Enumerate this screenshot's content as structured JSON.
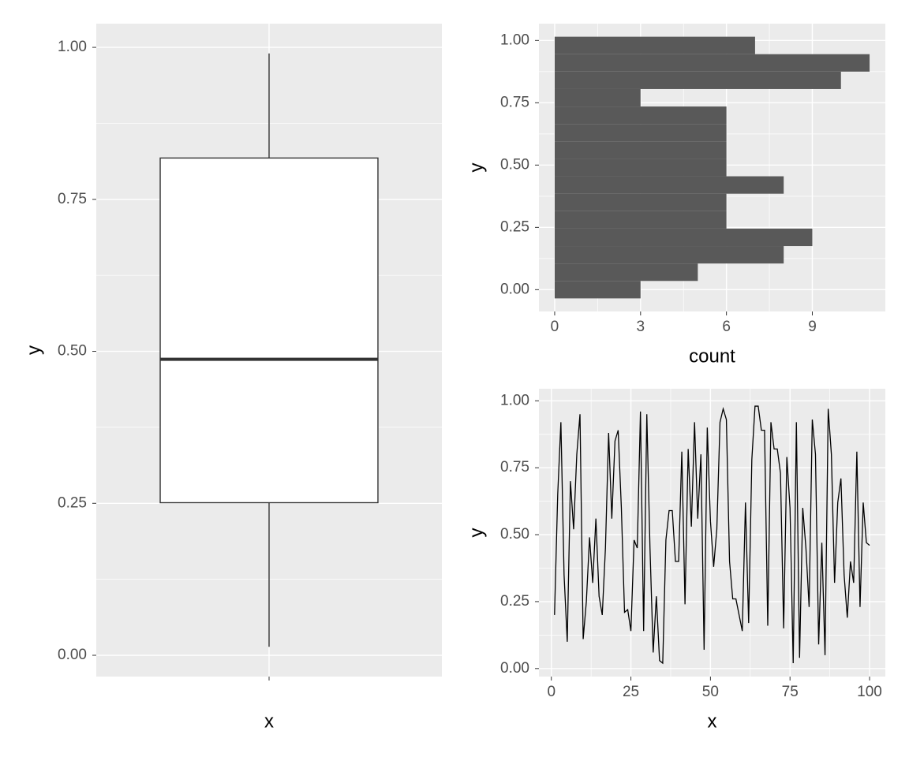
{
  "chart_data": [
    {
      "type": "box",
      "xlabel": "x",
      "ylabel": "y",
      "categories": [
        null
      ],
      "boxes": [
        {
          "min": 0.014,
          "q1": 0.251,
          "median": 0.487,
          "q3": 0.818,
          "max": 0.99
        }
      ],
      "fill": "#ffffff",
      "color": "#333333",
      "ylim": [
        -0.035,
        1.039
      ],
      "yticks": [
        {
          "value": 0,
          "label": "0.00"
        },
        {
          "value": 0.25,
          "label": "0.25"
        },
        {
          "value": 0.5,
          "label": "0.50"
        },
        {
          "value": 0.75,
          "label": "0.75"
        },
        {
          "value": 1,
          "label": "1.00"
        }
      ],
      "grid": true
    },
    {
      "type": "histogram",
      "orientation": "horizontal",
      "xlabel": "count",
      "ylabel": "y",
      "bins": [
        -0.035,
        0.035,
        0.105,
        0.175,
        0.245,
        0.315,
        0.385,
        0.455,
        0.525,
        0.595,
        0.665,
        0.735,
        0.805,
        0.875,
        0.945,
        1.015
      ],
      "values": [
        3,
        5,
        8,
        9,
        6,
        6,
        8,
        6,
        6,
        6,
        6,
        3,
        10,
        11,
        7
      ],
      "color": "#595959",
      "xlim": [
        -0.55,
        11.55
      ],
      "xticks": [
        0,
        3,
        6,
        9
      ],
      "ylim": [
        -0.0875,
        1.0675
      ],
      "yticks": [
        {
          "value": 0,
          "label": "0.00"
        },
        {
          "value": 0.25,
          "label": "0.25"
        },
        {
          "value": 0.5,
          "label": "0.50"
        },
        {
          "value": 0.75,
          "label": "0.75"
        },
        {
          "value": 1,
          "label": "1.00"
        }
      ],
      "grid": true
    },
    {
      "type": "line",
      "xlabel": "x",
      "ylabel": "y",
      "color": "#000000",
      "x": [
        1,
        2,
        3,
        4,
        5,
        6,
        7,
        8,
        9,
        10,
        11,
        12,
        13,
        14,
        15,
        16,
        17,
        18,
        19,
        20,
        21,
        22,
        23,
        24,
        25,
        26,
        27,
        28,
        29,
        30,
        31,
        32,
        33,
        34,
        35,
        36,
        37,
        38,
        39,
        40,
        41,
        42,
        43,
        44,
        45,
        46,
        47,
        48,
        49,
        50,
        51,
        52,
        53,
        54,
        55,
        56,
        57,
        58,
        59,
        60,
        61,
        62,
        63,
        64,
        65,
        66,
        67,
        68,
        69,
        70,
        71,
        72,
        73,
        74,
        75,
        76,
        77,
        78,
        79,
        80,
        81,
        82,
        83,
        84,
        85,
        86,
        87,
        88,
        89,
        90,
        91,
        92,
        93,
        94,
        95,
        96,
        97,
        98,
        99,
        100
      ],
      "values": [
        0.2,
        0.65,
        0.92,
        0.35,
        0.1,
        0.7,
        0.52,
        0.8,
        0.95,
        0.11,
        0.25,
        0.49,
        0.32,
        0.56,
        0.27,
        0.2,
        0.45,
        0.88,
        0.56,
        0.85,
        0.89,
        0.6,
        0.21,
        0.22,
        0.14,
        0.48,
        0.45,
        0.96,
        0.14,
        0.95,
        0.45,
        0.06,
        0.27,
        0.03,
        0.02,
        0.48,
        0.59,
        0.59,
        0.4,
        0.4,
        0.81,
        0.24,
        0.82,
        0.53,
        0.92,
        0.56,
        0.8,
        0.07,
        0.9,
        0.55,
        0.38,
        0.52,
        0.92,
        0.97,
        0.93,
        0.4,
        0.26,
        0.26,
        0.2,
        0.14,
        0.62,
        0.17,
        0.78,
        0.98,
        0.98,
        0.89,
        0.89,
        0.16,
        0.92,
        0.82,
        0.82,
        0.73,
        0.15,
        0.79,
        0.6,
        0.02,
        0.92,
        0.04,
        0.6,
        0.45,
        0.23,
        0.93,
        0.8,
        0.09,
        0.47,
        0.05,
        0.97,
        0.8,
        0.32,
        0.62,
        0.71,
        0.35,
        0.19,
        0.4,
        0.32,
        0.81,
        0.23,
        0.62,
        0.47,
        0.46
      ],
      "xlim": [
        -3.9,
        104.95
      ],
      "xticks": [
        0,
        25,
        50,
        75,
        100
      ],
      "ylim": [
        -0.03,
        1.045
      ],
      "yticks": [
        {
          "value": 0,
          "label": "0.00"
        },
        {
          "value": 0.25,
          "label": "0.25"
        },
        {
          "value": 0.5,
          "label": "0.50"
        },
        {
          "value": 0.75,
          "label": "0.75"
        },
        {
          "value": 1,
          "label": "1.00"
        }
      ],
      "grid": true
    }
  ]
}
